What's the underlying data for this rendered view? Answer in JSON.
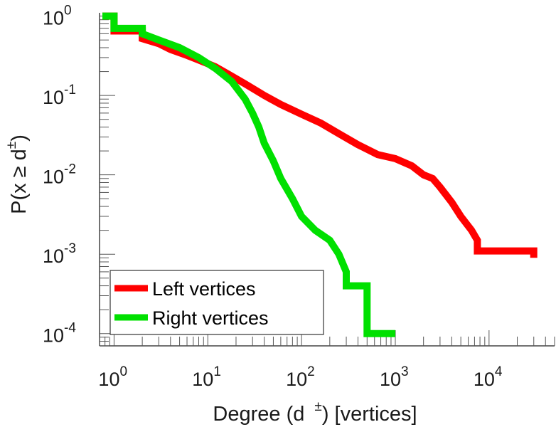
{
  "chart_data": {
    "type": "line",
    "scale": {
      "x": "log",
      "y": "log"
    },
    "xlim": [
      0.7,
      50000
    ],
    "ylim": [
      7e-05,
      1.1
    ],
    "grid": false,
    "legend_position": "bottom-left",
    "xlabel": {
      "prefix": "Degree (d",
      "sup": "±",
      "suffix": ") [vertices]"
    },
    "ylabel": {
      "prefix": "P(x ≥ d",
      "sup": "±",
      "suffix": ")"
    },
    "x_ticks": [
      {
        "base": "10",
        "exp": "0",
        "value": 1
      },
      {
        "base": "10",
        "exp": "1",
        "value": 10
      },
      {
        "base": "10",
        "exp": "2",
        "value": 100
      },
      {
        "base": "10",
        "exp": "3",
        "value": 1000
      },
      {
        "base": "10",
        "exp": "4",
        "value": 10000
      }
    ],
    "y_ticks": [
      {
        "base": "10",
        "exp": "0",
        "value": 1
      },
      {
        "base": "10",
        "exp": "-1",
        "value": 0.1
      },
      {
        "base": "10",
        "exp": "-2",
        "value": 0.01
      },
      {
        "base": "10",
        "exp": "-3",
        "value": 0.001
      },
      {
        "base": "10",
        "exp": "-4",
        "value": 0.0001
      }
    ],
    "series": [
      {
        "name": "Left vertices",
        "color": "#ff0000",
        "points": [
          [
            0.75,
            1.0
          ],
          [
            1,
            1.0
          ],
          [
            1,
            0.65
          ],
          [
            2,
            0.65
          ],
          [
            2,
            0.52
          ],
          [
            3,
            0.45
          ],
          [
            4,
            0.38
          ],
          [
            6,
            0.32
          ],
          [
            8,
            0.28
          ],
          [
            12,
            0.23
          ],
          [
            16,
            0.19
          ],
          [
            25,
            0.14
          ],
          [
            40,
            0.1
          ],
          [
            60,
            0.077
          ],
          [
            100,
            0.058
          ],
          [
            160,
            0.045
          ],
          [
            250,
            0.033
          ],
          [
            400,
            0.024
          ],
          [
            650,
            0.018
          ],
          [
            1000,
            0.016
          ],
          [
            1500,
            0.013
          ],
          [
            2000,
            0.01
          ],
          [
            2500,
            0.009
          ],
          [
            3000,
            0.007
          ],
          [
            4000,
            0.0045
          ],
          [
            5000,
            0.003
          ],
          [
            6500,
            0.002
          ],
          [
            7500,
            0.0015
          ],
          [
            7500,
            0.0011
          ],
          [
            30000,
            0.0011
          ],
          [
            30000,
            0.0009
          ]
        ]
      },
      {
        "name": "Right vertices",
        "color": "#00e000",
        "points": [
          [
            0.75,
            1.0
          ],
          [
            1,
            1.0
          ],
          [
            1,
            0.7
          ],
          [
            2,
            0.7
          ],
          [
            2,
            0.6
          ],
          [
            3,
            0.5
          ],
          [
            5,
            0.4
          ],
          [
            8,
            0.3
          ],
          [
            12,
            0.22
          ],
          [
            18,
            0.15
          ],
          [
            25,
            0.09
          ],
          [
            30,
            0.06
          ],
          [
            35,
            0.04
          ],
          [
            40,
            0.025
          ],
          [
            50,
            0.015
          ],
          [
            60,
            0.009
          ],
          [
            80,
            0.005
          ],
          [
            100,
            0.003
          ],
          [
            140,
            0.002
          ],
          [
            200,
            0.0015
          ],
          [
            250,
            0.001
          ],
          [
            300,
            0.0006
          ],
          [
            300,
            0.0004
          ],
          [
            500,
            0.0004
          ],
          [
            500,
            0.0002
          ],
          [
            500,
            0.0001
          ],
          [
            1000,
            0.0001
          ]
        ]
      }
    ]
  }
}
